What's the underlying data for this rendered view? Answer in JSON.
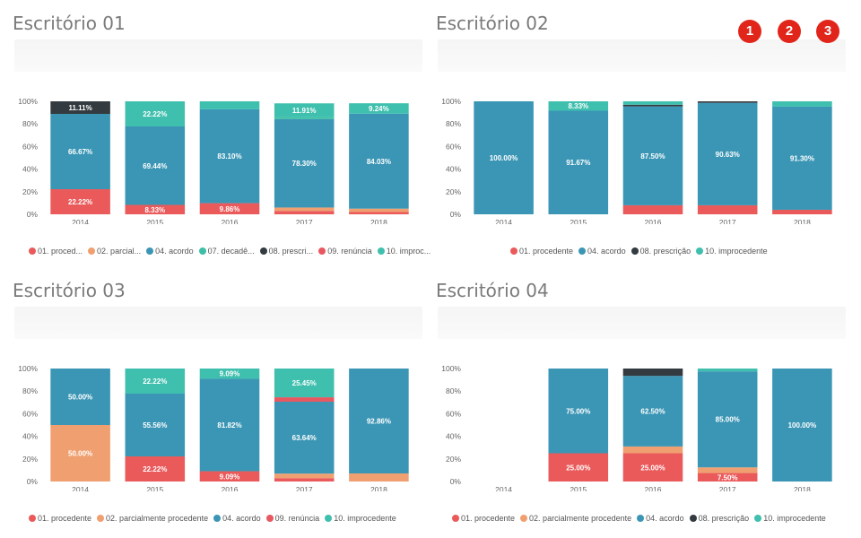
{
  "markers": [
    "1",
    "2",
    "3"
  ],
  "colors": {
    "01. procedente": "#ea5a5b",
    "02. parcialmente procedente": "#f0a070",
    "04. acordo": "#3b96b5",
    "07. decadência": "#3cbfa5",
    "08. prescrição": "#333b40",
    "09. renúncia": "#e85860",
    "10. improcedente": "#3fbfae"
  },
  "chart_data": [
    {
      "type": "bar",
      "title": "Escritório 01",
      "categories": [
        "2014",
        "2015",
        "2016",
        "2017",
        "2018"
      ],
      "yticks": [
        "0%",
        "20%",
        "40%",
        "60%",
        "80%",
        "100%"
      ],
      "legend": [
        "01. proced...",
        "02. parcial...",
        "04. acordo",
        "07. decadê...",
        "08. prescri...",
        "09. renúncia",
        "10. improc..."
      ],
      "legend_keys": [
        "01. procedente",
        "02. parcialmente procedente",
        "04. acordo",
        "07. decadência",
        "08. prescrição",
        "09. renúncia",
        "10. improcedente"
      ],
      "series": [
        {
          "key": "01. procedente",
          "values": [
            22.22,
            8.33,
            9.86,
            3,
            2
          ],
          "labels": [
            "22.22%",
            "8.33%",
            "9.86%",
            "",
            ""
          ]
        },
        {
          "key": "02. parcialmente procedente",
          "values": [
            0,
            0,
            0,
            3,
            3
          ],
          "labels": [
            "",
            "",
            "",
            "",
            ""
          ]
        },
        {
          "key": "04. acordo",
          "values": [
            66.67,
            69.44,
            83.1,
            78.3,
            84.03
          ],
          "labels": [
            "66.67%",
            "69.44%",
            "83.10%",
            "78.30%",
            "84.03%"
          ]
        },
        {
          "key": "07. decadência",
          "values": [
            0,
            0,
            0,
            2,
            0
          ],
          "labels": [
            "",
            "",
            "",
            "",
            ""
          ]
        },
        {
          "key": "08. prescrição",
          "values": [
            11.11,
            0,
            0,
            0,
            0
          ],
          "labels": [
            "11.11%",
            "",
            "",
            "",
            ""
          ]
        },
        {
          "key": "09. renúncia",
          "values": [
            0,
            0,
            0,
            0,
            0
          ],
          "labels": [
            "",
            "",
            "",
            "",
            ""
          ]
        },
        {
          "key": "10. improcedente",
          "values": [
            0,
            22.22,
            7.04,
            11.91,
            9.24
          ],
          "labels": [
            "",
            "22.22%",
            "",
            "11.91%",
            "9.24%"
          ]
        }
      ]
    },
    {
      "type": "bar",
      "title": "Escritório 02",
      "categories": [
        "2014",
        "2015",
        "2016",
        "2017",
        "2018"
      ],
      "yticks": [
        "0%",
        "20%",
        "40%",
        "60%",
        "80%",
        "100%"
      ],
      "legend": [
        "01. procedente",
        "04. acordo",
        "08. prescrição",
        "10. improcedente"
      ],
      "legend_keys": [
        "01. procedente",
        "04. acordo",
        "08. prescrição",
        "10. improcedente"
      ],
      "series": [
        {
          "key": "01. procedente",
          "values": [
            0,
            0,
            8,
            8,
            4
          ],
          "labels": [
            "",
            "",
            "",
            "",
            ""
          ]
        },
        {
          "key": "04. acordo",
          "values": [
            100,
            91.67,
            87.5,
            90.63,
            91.3
          ],
          "labels": [
            "100.00%",
            "91.67%",
            "87.50%",
            "90.63%",
            "91.30%"
          ]
        },
        {
          "key": "08. prescrição",
          "values": [
            0,
            0,
            1.5,
            1.37,
            0
          ],
          "labels": [
            "",
            "",
            "",
            "",
            ""
          ]
        },
        {
          "key": "10. improcedente",
          "values": [
            0,
            8.33,
            3,
            0,
            4.7
          ],
          "labels": [
            "",
            "8.33%",
            "",
            "",
            ""
          ]
        }
      ]
    },
    {
      "type": "bar",
      "title": "Escritório 03",
      "categories": [
        "2014",
        "2015",
        "2016",
        "2017",
        "2018"
      ],
      "yticks": [
        "0%",
        "20%",
        "40%",
        "60%",
        "80%",
        "100%"
      ],
      "legend": [
        "01. procedente",
        "02. parcialmente procedente",
        "04. acordo",
        "09. renúncia",
        "10. improcedente"
      ],
      "legend_keys": [
        "01. procedente",
        "02. parcialmente procedente",
        "04. acordo",
        "09. renúncia",
        "10. improcedente"
      ],
      "series": [
        {
          "key": "01. procedente",
          "values": [
            0,
            22.22,
            9.09,
            3,
            0
          ],
          "labels": [
            "",
            "22.22%",
            "9.09%",
            "",
            ""
          ]
        },
        {
          "key": "02. parcialmente procedente",
          "values": [
            50,
            0,
            0,
            4,
            7.14
          ],
          "labels": [
            "50.00%",
            "",
            "",
            "",
            ""
          ]
        },
        {
          "key": "04. acordo",
          "values": [
            50,
            55.56,
            81.82,
            63.64,
            92.86
          ],
          "labels": [
            "50.00%",
            "55.56%",
            "81.82%",
            "63.64%",
            "92.86%"
          ]
        },
        {
          "key": "09. renúncia",
          "values": [
            0,
            0,
            0,
            3.91,
            0
          ],
          "labels": [
            "",
            "",
            "",
            "",
            ""
          ]
        },
        {
          "key": "10. improcedente",
          "values": [
            0,
            22.22,
            9.09,
            25.45,
            0
          ],
          "labels": [
            "",
            "22.22%",
            "9.09%",
            "25.45%",
            ""
          ]
        }
      ]
    },
    {
      "type": "bar",
      "title": "Escritório 04",
      "categories": [
        "2014",
        "2015",
        "2016",
        "2017",
        "2018"
      ],
      "yticks": [
        "0%",
        "20%",
        "40%",
        "60%",
        "80%",
        "100%"
      ],
      "legend": [
        "01. procedente",
        "02. parcialmente procedente",
        "04. acordo",
        "08. prescrição",
        "10. improcedente"
      ],
      "legend_keys": [
        "01. procedente",
        "02. parcialmente procedente",
        "04. acordo",
        "08. prescrição",
        "10. improcedente"
      ],
      "series": [
        {
          "key": "01. procedente",
          "values": [
            0,
            25,
            25,
            7.5,
            0
          ],
          "labels": [
            "",
            "25.00%",
            "25.00%",
            "7.50%",
            ""
          ]
        },
        {
          "key": "02. parcialmente procedente",
          "values": [
            0,
            0,
            6,
            5,
            0
          ],
          "labels": [
            "",
            "",
            "",
            "",
            ""
          ]
        },
        {
          "key": "04. acordo",
          "values": [
            0,
            75,
            62.5,
            85,
            100
          ],
          "labels": [
            "",
            "75.00%",
            "62.50%",
            "85.00%",
            "100.00%"
          ]
        },
        {
          "key": "08. prescrição",
          "values": [
            0,
            0,
            6.5,
            0,
            0
          ],
          "labels": [
            "",
            "",
            "",
            "",
            ""
          ]
        },
        {
          "key": "10. improcedente",
          "values": [
            0,
            0,
            0,
            2.5,
            0
          ],
          "labels": [
            "",
            "",
            "",
            "",
            ""
          ]
        }
      ]
    }
  ]
}
